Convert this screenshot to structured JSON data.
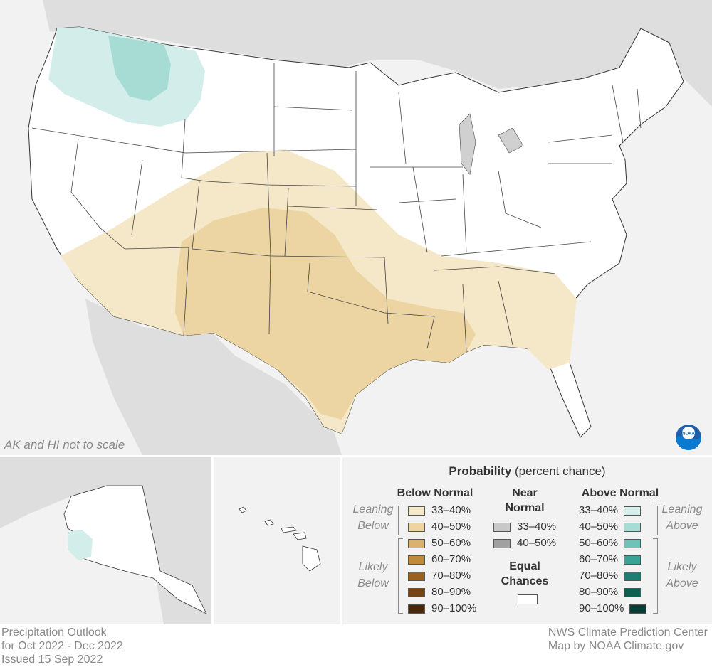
{
  "map": {
    "inset_note": "AK and HI not to scale",
    "logo_icon": "noaa-logo-icon"
  },
  "legend": {
    "title_bold": "Probability",
    "title_rest": " (percent chance)",
    "below_normal": {
      "heading": "Below Normal",
      "leaning_label": [
        "Leaning",
        "Below"
      ],
      "likely_label": [
        "Likely",
        "Below"
      ],
      "items": [
        {
          "label": "33–40%",
          "color": "#f5e8c8"
        },
        {
          "label": "40–50%",
          "color": "#ecd5a2"
        },
        {
          "label": "50–60%",
          "color": "#d9b271"
        },
        {
          "label": "60–70%",
          "color": "#c08a3c"
        },
        {
          "label": "70–80%",
          "color": "#9a6220"
        },
        {
          "label": "80–90%",
          "color": "#764314"
        },
        {
          "label": "90–100%",
          "color": "#4a2708"
        }
      ]
    },
    "near_normal": {
      "heading": [
        "Near",
        "Normal"
      ],
      "items": [
        {
          "label": "33–40%",
          "color": "#c8c8c8"
        },
        {
          "label": "40–50%",
          "color": "#a0a0a0"
        }
      ]
    },
    "equal_chances": {
      "heading": [
        "Equal",
        "Chances"
      ],
      "color": "#ffffff"
    },
    "above_normal": {
      "heading": "Above Normal",
      "leaning_label": [
        "Leaning",
        "Above"
      ],
      "likely_label": [
        "Likely",
        "Above"
      ],
      "items": [
        {
          "label": "33–40%",
          "color": "#d3eeea"
        },
        {
          "label": "40–50%",
          "color": "#a7dcd4"
        },
        {
          "label": "50–60%",
          "color": "#6fc2b7"
        },
        {
          "label": "60–70%",
          "color": "#3aa396"
        },
        {
          "label": "70–80%",
          "color": "#1c7f71"
        },
        {
          "label": "80–90%",
          "color": "#0d5f52"
        },
        {
          "label": "90–100%",
          "color": "#063e35"
        }
      ]
    }
  },
  "footer": {
    "left": [
      "Precipitation Outlook",
      "for Oct 2022 - Dec 2022",
      "Issued 15 Sep 2022"
    ],
    "right": [
      "NWS Climate Prediction Center",
      "Map by NOAA Climate.gov"
    ]
  }
}
